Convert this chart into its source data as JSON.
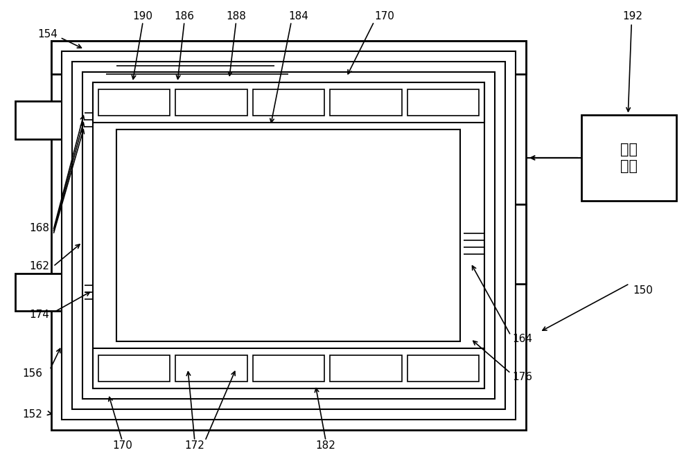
{
  "bg_color": "#ffffff",
  "lw_thin": 1.2,
  "lw_med": 1.8,
  "lw_thick": 2.5,
  "fig_w": 10.0,
  "fig_h": 6.6,
  "resin_text": "树脂\n材料"
}
